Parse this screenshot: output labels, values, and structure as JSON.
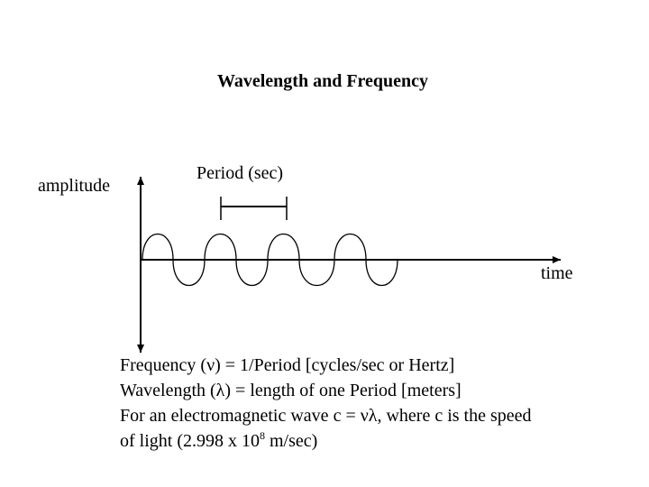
{
  "title": "Wavelength and Frequency",
  "labels": {
    "amplitude": "amplitude",
    "period": "Period (sec)",
    "time": "time"
  },
  "text": {
    "line1": "Frequency (ν) = 1/Period [cycles/sec or Hertz]",
    "line2": "Wavelength (λ) = length of one Period [meters]",
    "line3": "For an electromagnetic wave c = νλ, where c is the speed",
    "line4_pre": "of light (2.998 x 10",
    "line4_sup": "8",
    "line4_post": " m/sec)"
  }
}
